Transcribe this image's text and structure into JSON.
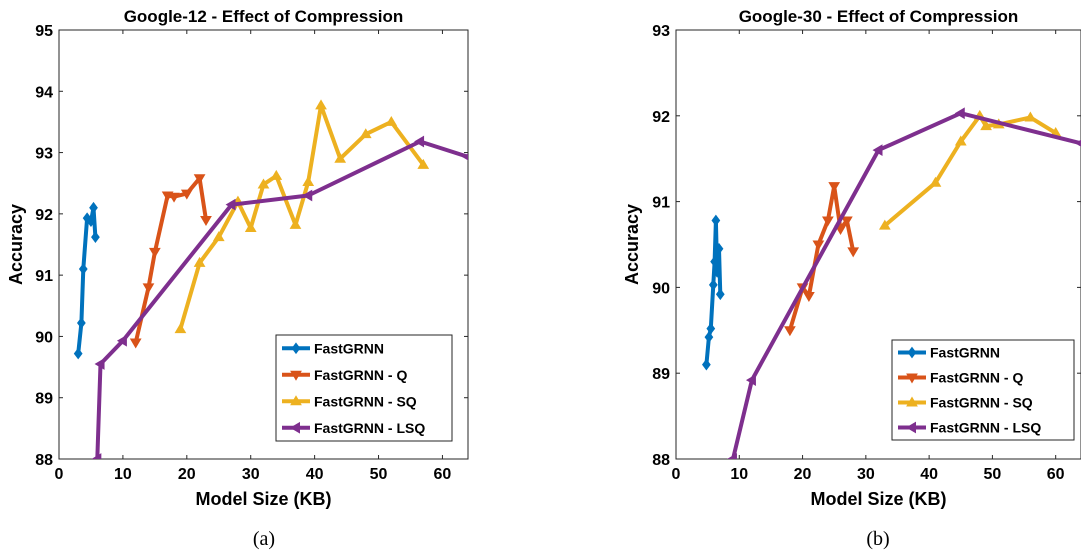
{
  "chart_data": [
    {
      "type": "line",
      "title": "Google-12 - Effect of Compression",
      "xlabel": "Model Size (KB)",
      "ylabel": "Accuracy",
      "caption": "(a)",
      "xlim": [
        0,
        64
      ],
      "ylim": [
        88,
        95
      ],
      "xticks": [
        0,
        10,
        20,
        30,
        40,
        50,
        60
      ],
      "yticks": [
        88,
        89,
        90,
        91,
        92,
        93,
        94,
        95
      ],
      "grid": false,
      "legend_position": "bottom-right",
      "series": [
        {
          "name": "FastGRNN",
          "color": "#0072BD",
          "marker": "diamond",
          "points": [
            [
              3.0,
              89.72
            ],
            [
              3.5,
              90.22
            ],
            [
              3.8,
              91.1
            ],
            [
              4.4,
              91.93
            ],
            [
              5.0,
              91.88
            ],
            [
              5.4,
              92.1
            ],
            [
              5.7,
              91.62
            ]
          ]
        },
        {
          "name": "FastGRNN - Q",
          "color": "#D95319",
          "marker": "triangle-down",
          "points": [
            [
              12.0,
              89.9
            ],
            [
              14.0,
              90.8
            ],
            [
              15.0,
              91.38
            ],
            [
              17.0,
              92.3
            ],
            [
              18.0,
              92.28
            ],
            [
              20.0,
              92.33
            ],
            [
              22.0,
              92.58
            ],
            [
              23.0,
              91.9
            ]
          ]
        },
        {
          "name": "FastGRNN - SQ",
          "color": "#EDB120",
          "marker": "triangle-up",
          "points": [
            [
              19.0,
              90.12
            ],
            [
              22.0,
              91.2
            ],
            [
              25.0,
              91.62
            ],
            [
              28.0,
              92.2
            ],
            [
              30.0,
              91.77
            ],
            [
              32.0,
              92.48
            ],
            [
              34.0,
              92.62
            ],
            [
              37.0,
              91.82
            ],
            [
              39.0,
              92.52
            ],
            [
              41.0,
              93.77
            ],
            [
              44.0,
              92.9
            ],
            [
              48.0,
              93.3
            ],
            [
              52.0,
              93.5
            ],
            [
              57.0,
              92.8
            ]
          ]
        },
        {
          "name": "FastGRNN - LSQ",
          "color": "#7E2F8E",
          "marker": "triangle-left",
          "points": [
            [
              6.0,
              88.0
            ],
            [
              6.5,
              89.55
            ],
            [
              10.0,
              89.93
            ],
            [
              27.0,
              92.15
            ],
            [
              39.0,
              92.3
            ],
            [
              56.5,
              93.18
            ],
            [
              64.0,
              92.93
            ]
          ]
        }
      ]
    },
    {
      "type": "line",
      "title": "Google-30 - Effect of Compression",
      "xlabel": "Model Size (KB)",
      "ylabel": "Accuracy",
      "caption": "(b)",
      "xlim": [
        0,
        64
      ],
      "ylim": [
        88,
        93
      ],
      "xticks": [
        0,
        10,
        20,
        30,
        40,
        50,
        60
      ],
      "yticks": [
        88,
        89,
        90,
        91,
        92,
        93
      ],
      "grid": false,
      "legend_position": "bottom-right",
      "series": [
        {
          "name": "FastGRNN",
          "color": "#0072BD",
          "marker": "diamond",
          "points": [
            [
              4.8,
              89.1
            ],
            [
              5.2,
              89.42
            ],
            [
              5.5,
              89.52
            ],
            [
              5.9,
              90.03
            ],
            [
              6.1,
              90.3
            ],
            [
              6.3,
              90.78
            ],
            [
              6.5,
              90.18
            ],
            [
              6.8,
              90.45
            ],
            [
              7.0,
              89.92
            ]
          ]
        },
        {
          "name": "FastGRNN - Q",
          "color": "#D95319",
          "marker": "triangle-down",
          "points": [
            [
              18.0,
              89.5
            ],
            [
              20.0,
              90.0
            ],
            [
              21.0,
              89.9
            ],
            [
              22.5,
              90.5
            ],
            [
              24.0,
              90.78
            ],
            [
              25.0,
              91.18
            ],
            [
              26.0,
              90.68
            ],
            [
              27.0,
              90.78
            ],
            [
              28.0,
              90.42
            ]
          ]
        },
        {
          "name": "FastGRNN - SQ",
          "color": "#EDB120",
          "marker": "triangle-up",
          "points": [
            [
              33.0,
              90.72
            ],
            [
              41.0,
              91.22
            ],
            [
              45.0,
              91.7
            ],
            [
              48.0,
              92.0
            ],
            [
              49.0,
              91.88
            ],
            [
              51.0,
              91.9
            ],
            [
              56.0,
              91.98
            ],
            [
              60.0,
              91.8
            ]
          ]
        },
        {
          "name": "FastGRNN - LSQ",
          "color": "#7E2F8E",
          "marker": "triangle-left",
          "points": [
            [
              9.0,
              88.0
            ],
            [
              12.0,
              88.92
            ],
            [
              32.0,
              91.6
            ],
            [
              45.0,
              92.03
            ],
            [
              64.0,
              91.68
            ]
          ]
        }
      ]
    }
  ]
}
